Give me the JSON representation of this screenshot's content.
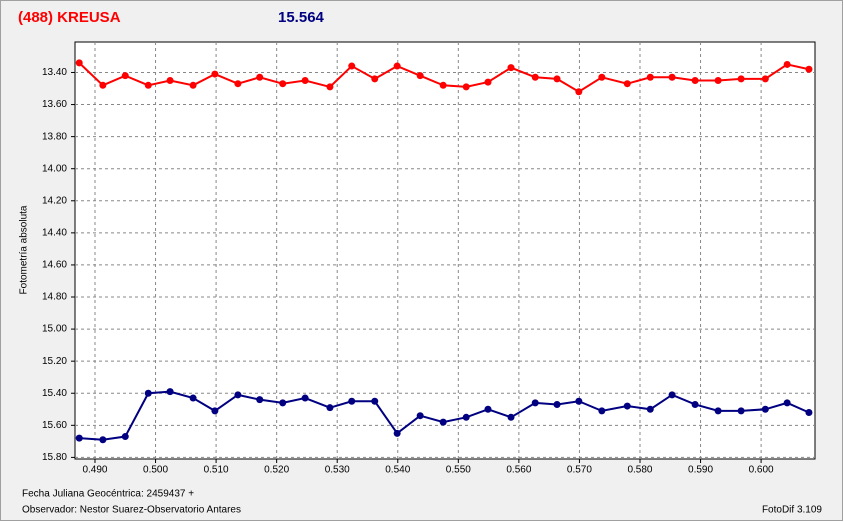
{
  "chart_data": {
    "type": "line",
    "title": "(488) KREUSA",
    "subtitle": "15.564",
    "y_label": "Fotometría absoluta",
    "footer_left": [
      "Fecha Juliana Geocéntrica: 2459437 +",
      "Observador: Nestor Suarez-Observatorio Antares"
    ],
    "footer_right": "FotoDif 3.109",
    "x": [
      0.4874,
      0.4913,
      0.495,
      0.4988,
      0.5024,
      0.5062,
      0.5098,
      0.5136,
      0.5172,
      0.521,
      0.5247,
      0.5288,
      0.5324,
      0.5362,
      0.5399,
      0.5437,
      0.5475,
      0.5513,
      0.5549,
      0.5587,
      0.5627,
      0.5663,
      0.5699,
      0.5737,
      0.5779,
      0.5817,
      0.5853,
      0.5891,
      0.5929,
      0.5967,
      0.6007,
      0.6043,
      0.6079
    ],
    "series": [
      {
        "color": "#ff0000",
        "values": [
          13.34,
          13.48,
          13.42,
          13.48,
          13.45,
          13.48,
          13.41,
          13.47,
          13.43,
          13.47,
          13.45,
          13.49,
          13.36,
          13.44,
          13.36,
          13.42,
          13.48,
          13.49,
          13.46,
          13.37,
          13.43,
          13.44,
          13.52,
          13.43,
          13.47,
          13.43,
          13.43,
          13.45,
          13.45,
          13.44,
          13.44,
          13.35,
          13.38
        ]
      },
      {
        "color": "#000080",
        "values": [
          15.68,
          15.69,
          15.67,
          15.4,
          15.39,
          15.43,
          15.51,
          15.41,
          15.44,
          15.46,
          15.43,
          15.49,
          15.45,
          15.45,
          15.65,
          15.54,
          15.58,
          15.55,
          15.5,
          15.55,
          15.46,
          15.47,
          15.45,
          15.51,
          15.48,
          15.5,
          15.41,
          15.47,
          15.51,
          15.51,
          15.5,
          15.46,
          15.52
        ]
      }
    ],
    "xlim": [
      0.4867,
      0.6089
    ],
    "ylim": [
      13.21,
      15.81
    ],
    "y_inverted": true,
    "grid": true,
    "xticks": [
      {
        "value": 0.49,
        "label": "0.490"
      },
      {
        "value": 0.5,
        "label": "0.500"
      },
      {
        "value": 0.51,
        "label": "0.510"
      },
      {
        "value": 0.52,
        "label": "0.520"
      },
      {
        "value": 0.53,
        "label": "0.530"
      },
      {
        "value": 0.54,
        "label": "0.540"
      },
      {
        "value": 0.55,
        "label": "0.550"
      },
      {
        "value": 0.56,
        "label": "0.560"
      },
      {
        "value": 0.57,
        "label": "0.570"
      },
      {
        "value": 0.58,
        "label": "0.580"
      },
      {
        "value": 0.59,
        "label": "0.590"
      },
      {
        "value": 0.6,
        "label": "0.600"
      }
    ],
    "yticks": [
      {
        "value": 13.4,
        "label": "13.40"
      },
      {
        "value": 13.6,
        "label": "13.60"
      },
      {
        "value": 13.8,
        "label": "13.80"
      },
      {
        "value": 14,
        "label": "14.00"
      },
      {
        "value": 14.2,
        "label": "14.20"
      },
      {
        "value": 14.4,
        "label": "14.40"
      },
      {
        "value": 14.6,
        "label": "14.60"
      },
      {
        "value": 14.8,
        "label": "14.80"
      },
      {
        "value": 15,
        "label": "15.00"
      },
      {
        "value": 15.2,
        "label": "15.20"
      },
      {
        "value": 15.4,
        "label": "15.40"
      },
      {
        "value": 15.6,
        "label": "15.60"
      },
      {
        "value": 15.8,
        "label": "15.80"
      }
    ]
  }
}
